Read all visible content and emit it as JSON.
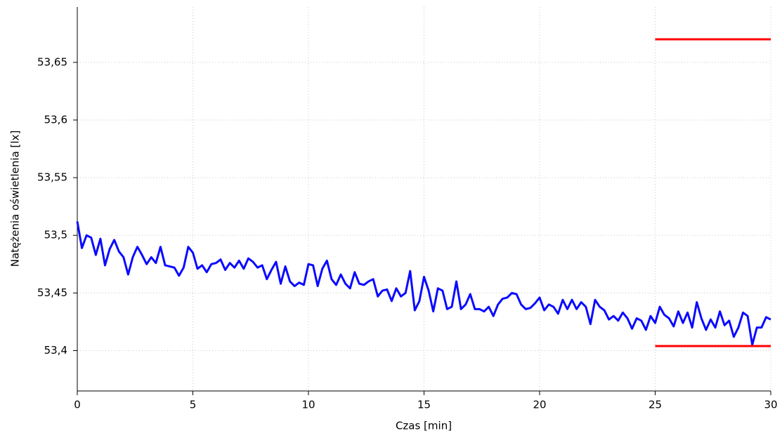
{
  "chart_data": {
    "type": "line",
    "xlabel": "Czas [min]",
    "ylabel": "Natężenia oświetlenia [lx]",
    "xlim": [
      0,
      30
    ],
    "xticks": [
      0,
      5,
      10,
      15,
      20,
      25,
      30
    ],
    "ylim": [
      53.365,
      53.698
    ],
    "yticks": [
      {
        "value": 53.4,
        "label": "53,4"
      },
      {
        "value": 53.45,
        "label": "53,45"
      },
      {
        "value": 53.5,
        "label": "53,5"
      },
      {
        "value": 53.55,
        "label": "53,55"
      },
      {
        "value": 53.6,
        "label": "53,6"
      },
      {
        "value": 53.65,
        "label": "53,65"
      }
    ],
    "grid": true,
    "series": [
      {
        "color": "#0a0aff",
        "x": [
          0,
          0.2,
          0.4,
          0.6,
          0.8,
          1,
          1.2,
          1.4,
          1.6,
          1.8,
          2,
          2.2,
          2.4,
          2.6,
          2.8,
          3,
          3.2,
          3.4,
          3.6,
          3.8,
          4,
          4.2,
          4.4,
          4.6,
          4.8,
          5,
          5.2,
          5.4,
          5.6,
          5.8,
          6,
          6.2,
          6.4,
          6.6,
          6.8,
          7,
          7.2,
          7.4,
          7.6,
          7.8,
          8,
          8.2,
          8.4,
          8.6,
          8.8,
          9,
          9.2,
          9.4,
          9.6,
          9.8,
          10,
          10.2,
          10.4,
          10.6,
          10.8,
          11,
          11.2,
          11.4,
          11.6,
          11.8,
          12,
          12.2,
          12.4,
          12.6,
          12.8,
          13,
          13.2,
          13.4,
          13.6,
          13.8,
          14,
          14.2,
          14.4,
          14.6,
          14.8,
          15,
          15.2,
          15.4,
          15.6,
          15.8,
          16,
          16.2,
          16.4,
          16.6,
          16.8,
          17,
          17.2,
          17.4,
          17.6,
          17.8,
          18,
          18.2,
          18.4,
          18.6,
          18.8,
          19,
          19.2,
          19.4,
          19.6,
          19.8,
          20,
          20.2,
          20.4,
          20.6,
          20.8,
          21,
          21.2,
          21.4,
          21.6,
          21.8,
          22,
          22.2,
          22.4,
          22.6,
          22.8,
          23,
          23.2,
          23.4,
          23.6,
          23.8,
          24,
          24.2,
          24.4,
          24.6,
          24.8,
          25,
          25.2,
          25.4,
          25.6,
          25.8,
          26,
          26.2,
          26.4,
          26.6,
          26.8,
          27,
          27.2,
          27.4,
          27.6,
          27.8,
          28,
          28.2,
          28.4,
          28.6,
          28.8,
          29,
          29.2,
          29.4,
          29.6,
          29.8,
          30
        ],
        "values": [
          53.512,
          53.489,
          53.5,
          53.498,
          53.483,
          53.497,
          53.474,
          53.488,
          53.496,
          53.486,
          53.481,
          53.466,
          53.481,
          53.49,
          53.483,
          53.475,
          53.481,
          53.476,
          53.49,
          53.474,
          53.473,
          53.472,
          53.465,
          53.472,
          53.49,
          53.485,
          53.471,
          53.474,
          53.468,
          53.475,
          53.476,
          53.479,
          53.47,
          53.476,
          53.472,
          53.478,
          53.471,
          53.48,
          53.477,
          53.472,
          53.474,
          53.462,
          53.47,
          53.477,
          53.458,
          53.473,
          53.46,
          53.456,
          53.459,
          53.457,
          53.475,
          53.474,
          53.456,
          53.471,
          53.478,
          53.462,
          53.457,
          53.466,
          53.458,
          53.454,
          53.468,
          53.458,
          53.457,
          53.46,
          53.462,
          53.447,
          53.452,
          53.453,
          53.443,
          53.454,
          53.447,
          53.45,
          53.469,
          53.435,
          53.443,
          53.464,
          53.452,
          53.434,
          53.454,
          53.452,
          53.436,
          53.438,
          53.46,
          53.436,
          53.44,
          53.449,
          53.436,
          53.436,
          53.434,
          53.438,
          53.43,
          53.44,
          53.445,
          53.446,
          53.45,
          53.449,
          53.44,
          53.436,
          53.437,
          53.441,
          53.446,
          53.435,
          53.44,
          53.438,
          53.432,
          53.444,
          53.436,
          53.444,
          53.436,
          53.442,
          53.438,
          53.423,
          53.444,
          53.438,
          53.435,
          53.427,
          53.43,
          53.426,
          53.433,
          53.428,
          53.419,
          53.428,
          53.426,
          53.418,
          53.43,
          53.424,
          53.438,
          53.431,
          53.428,
          53.421,
          53.434,
          53.424,
          53.433,
          53.42,
          53.442,
          53.428,
          53.418,
          53.427,
          53.42,
          53.434,
          53.422,
          53.426,
          53.412,
          53.42,
          53.433,
          53.43,
          53.405,
          53.42,
          53.42,
          53.429,
          53.427
        ]
      },
      {
        "color": "#ff0000",
        "x": [
          25,
          30
        ],
        "values": [
          53.67,
          53.67
        ]
      },
      {
        "color": "#ff0000",
        "x": [
          25,
          30
        ],
        "values": [
          53.404,
          53.404
        ]
      }
    ]
  }
}
